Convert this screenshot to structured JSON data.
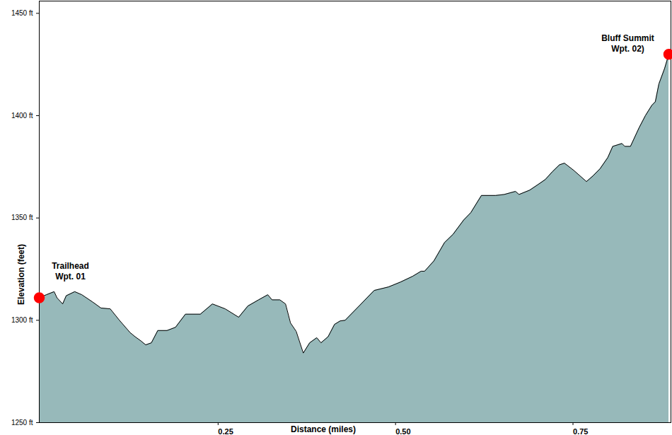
{
  "chart_data": {
    "type": "area",
    "x_label": "Distance (miles)",
    "y_label": "Elevation (feet)",
    "color": "#97b9ba",
    "xlim": [
      0,
      0.89
    ],
    "ylim": [
      1250,
      1456
    ],
    "xticks": [
      0.25,
      {
        "value": 0.5,
        "label": "0.50"
      },
      0.75
    ],
    "yticks": [
      {
        "value": 1250,
        "label": "1250 ft"
      },
      {
        "value": 1300,
        "label": "1300 ft"
      },
      {
        "value": 1350,
        "label": "1350 ft"
      },
      {
        "value": 1400,
        "label": "1400 ft"
      },
      {
        "value": 1450,
        "label": "1450 ft"
      }
    ],
    "grid": false,
    "x": [
      0,
      0.01,
      0.021,
      0.025,
      0.033,
      0.038,
      0.05,
      0.06,
      0.075,
      0.087,
      0.1,
      0.113,
      0.128,
      0.135,
      0.143,
      0.15,
      0.158,
      0.167,
      0.18,
      0.192,
      0.206,
      0.227,
      0.244,
      0.262,
      0.281,
      0.294,
      0.309,
      0.322,
      0.328,
      0.339,
      0.347,
      0.354,
      0.362,
      0.372,
      0.381,
      0.391,
      0.397,
      0.407,
      0.416,
      0.424,
      0.431,
      0.472,
      0.492,
      0.509,
      0.526,
      0.538,
      0.543,
      0.556,
      0.571,
      0.583,
      0.598,
      0.608,
      0.623,
      0.643,
      0.655,
      0.671,
      0.676,
      0.691,
      0.703,
      0.713,
      0.723,
      0.733,
      0.74,
      0.753,
      0.771,
      0.78,
      0.79,
      0.801,
      0.808,
      0.821,
      0.825,
      0.833,
      0.845,
      0.854,
      0.863,
      0.868,
      0.873,
      0.881,
      0.887
    ],
    "values": [
      1311,
      1312.5,
      1314,
      1311,
      1308,
      1312,
      1314,
      1312.5,
      1309,
      1306,
      1305.6,
      1300,
      1294,
      1292,
      1290,
      1288,
      1289,
      1295,
      1295,
      1296.6,
      1303,
      1303,
      1308,
      1305.6,
      1301.5,
      1307,
      1310,
      1312.5,
      1310,
      1310,
      1308,
      1298.7,
      1294.6,
      1284,
      1289,
      1291.5,
      1289,
      1292,
      1298,
      1299.7,
      1300,
      1314.6,
      1316.3,
      1318.7,
      1321.5,
      1324,
      1324,
      1329,
      1338,
      1342,
      1349,
      1352.6,
      1361,
      1361,
      1361.5,
      1363,
      1361.5,
      1363.6,
      1366.4,
      1368.8,
      1372.6,
      1376,
      1376.8,
      1373.3,
      1367.8,
      1370.5,
      1374,
      1379.5,
      1385,
      1386.4,
      1385,
      1385,
      1394,
      1400,
      1405,
      1406.8,
      1415.5,
      1423,
      1430
    ],
    "annotations": [
      {
        "text": "Trailhead\nWpt. 01",
        "x": 0,
        "y": 1311,
        "marker": "circle",
        "color": "#ff0000"
      },
      {
        "text": "Bluff Summit\nWpt. 02)",
        "x": 0.887,
        "y": 1430,
        "marker": "circle",
        "color": "#ff0000"
      }
    ]
  }
}
